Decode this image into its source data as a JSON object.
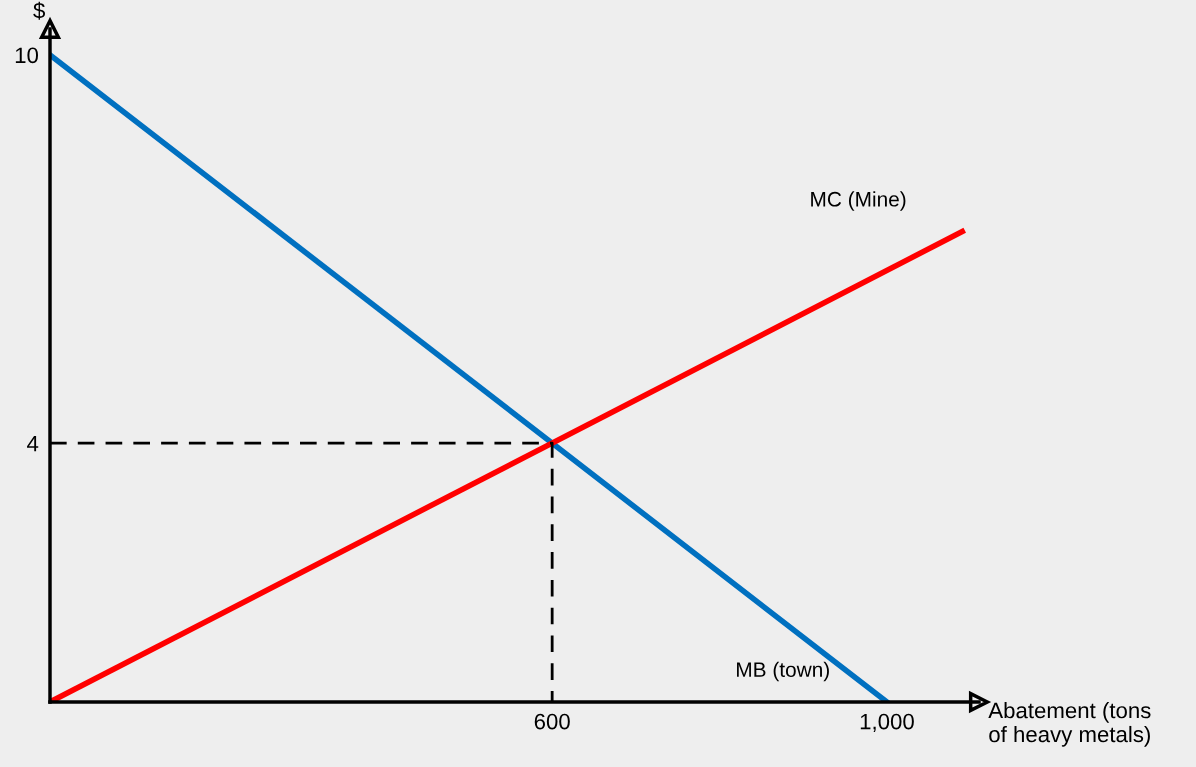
{
  "chart_data": {
    "type": "line",
    "xlabel": "Abatement (tons\nof heavy metals)",
    "ylabel": "$",
    "series": [
      {
        "name": "MB (town)",
        "color": "#0070c0",
        "x": [
          0,
          1000
        ],
        "values": [
          10,
          0
        ]
      },
      {
        "name": "MC (Mine)",
        "color": "#ff0000",
        "x": [
          0,
          1090
        ],
        "values": [
          0,
          7.27
        ]
      },
      {
        "color": "#000000",
        "x": [
          0,
          600,
          600
        ],
        "values": [
          4,
          4,
          0
        ],
        "line_style": "dashed"
      }
    ],
    "xlim": [
      0,
      1110
    ],
    "ylim": [
      0,
      10.4
    ],
    "xticks": [
      600,
      {
        "value": 1000,
        "label": "1,000"
      }
    ],
    "yticks": [
      4,
      10
    ],
    "grid": false,
    "legend": false,
    "marker": "none",
    "line_style": "solid"
  }
}
